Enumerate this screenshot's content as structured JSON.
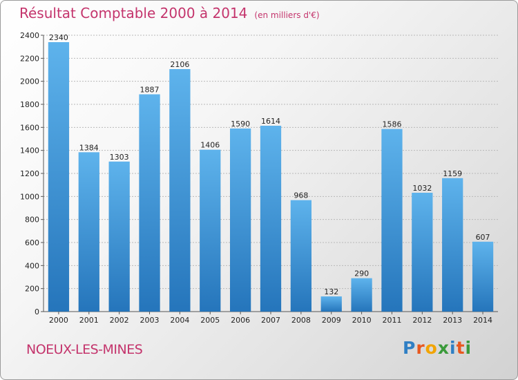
{
  "chart_data": {
    "type": "bar",
    "title": "Résultat Comptable 2000 à 2014",
    "subtitle": "(en milliers d'€)",
    "categories": [
      "2000",
      "2001",
      "2002",
      "2003",
      "2004",
      "2005",
      "2006",
      "2007",
      "2008",
      "2009",
      "2010",
      "2011",
      "2012",
      "2013",
      "2014"
    ],
    "values": [
      2340,
      1384,
      1303,
      1887,
      2106,
      1406,
      1590,
      1614,
      968,
      132,
      290,
      1586,
      1032,
      1159,
      607
    ],
    "ylim": [
      0,
      2400
    ],
    "yticks": [
      0,
      200,
      400,
      600,
      800,
      1000,
      1200,
      1400,
      1600,
      1800,
      2000,
      2200,
      2400
    ],
    "grid": true,
    "xlabel": "",
    "ylabel": ""
  },
  "commune": "NOEUX-LES-MINES",
  "logo": {
    "letters": [
      "P",
      "r",
      "o",
      "x",
      "i",
      "t",
      "i"
    ],
    "colors": [
      "#2f7fc4",
      "#e8581f",
      "#f2a400",
      "#3a9a3a",
      "#2f7fc4",
      "#e8581f",
      "#3a9a3a"
    ]
  },
  "colors": {
    "bar_top": "#5eb3ec",
    "bar_bottom": "#2575bb",
    "title": "#c4346c",
    "grid": "#b8b8b8"
  }
}
